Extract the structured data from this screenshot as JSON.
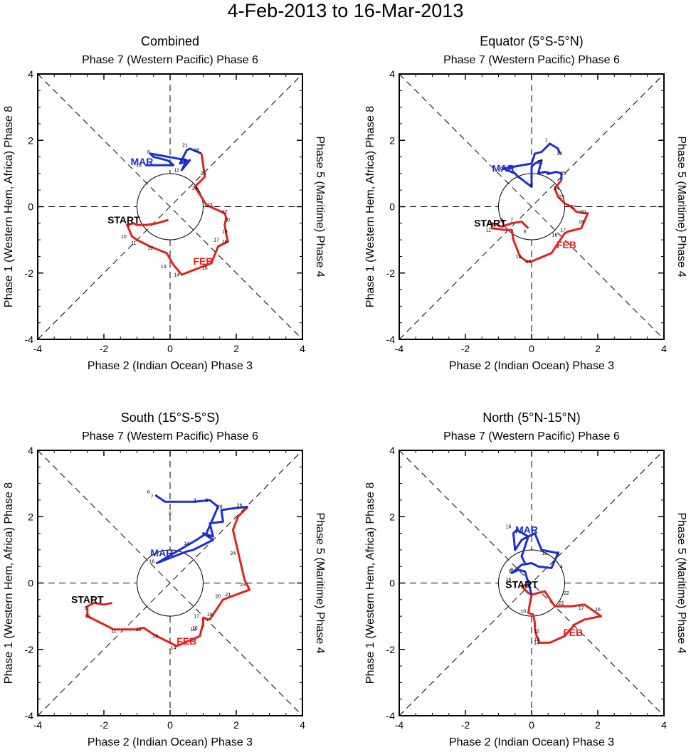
{
  "title": "4-Feb-2013 to 16-Mar-2013",
  "colors": {
    "feb": "#e8201a",
    "mar": "#1a2fd6",
    "axis": "#000000"
  },
  "chart_data": [
    {
      "type": "line",
      "title": "Combined",
      "top_label": "Phase 7 (Western Pacific) Phase 6",
      "bottom_label": "Phase 2 (Indian Ocean) Phase 3",
      "left_label": "Phase 1 (Western Hem, Africa) Phase 8",
      "right_label": "Phase 5 (Maritime) Phase 4",
      "xlim": [
        -4,
        4
      ],
      "ylim": [
        -4,
        4
      ],
      "ticks": [
        -4,
        -2,
        0,
        2,
        4
      ],
      "start_label": "START",
      "feb_label": "FEB",
      "mar_label": "MAR",
      "start_label_pos": [
        -1.4,
        -0.5
      ],
      "feb_label_pos": [
        1.0,
        -1.75
      ],
      "mar_label_pos": [
        -0.85,
        1.25
      ],
      "feb": [
        [
          -0.05,
          -0.4
        ],
        [
          -0.4,
          -0.5
        ],
        [
          -0.7,
          -0.55
        ],
        [
          -1.0,
          -0.55
        ],
        [
          -1.1,
          -0.5
        ],
        [
          -1.3,
          -0.55
        ],
        [
          -1.15,
          -0.9
        ],
        [
          -1.0,
          -1.0
        ],
        [
          -0.6,
          -1.2
        ],
        [
          -0.35,
          -1.3
        ],
        [
          -0.1,
          -1.4
        ],
        [
          0.1,
          -1.75
        ],
        [
          0.35,
          -2.05
        ],
        [
          1.0,
          -1.8
        ],
        [
          1.25,
          -1.7
        ],
        [
          1.45,
          -1.2
        ],
        [
          1.75,
          -1.05
        ],
        [
          1.7,
          -0.85
        ],
        [
          1.65,
          -0.55
        ],
        [
          1.7,
          -0.35
        ],
        [
          1.65,
          -0.2
        ],
        [
          1.1,
          0.05
        ],
        [
          0.75,
          0.6
        ],
        [
          1.05,
          0.9
        ],
        [
          0.95,
          1.6
        ]
      ],
      "mar": [
        [
          0.95,
          1.6
        ],
        [
          0.6,
          1.75
        ],
        [
          0.5,
          1.7
        ],
        [
          0.3,
          1.3
        ],
        [
          0.6,
          1.4
        ],
        [
          0.35,
          1.1
        ],
        [
          0.5,
          1.4
        ],
        [
          -0.6,
          1.6
        ],
        [
          -0.55,
          1.55
        ],
        [
          -0.5,
          1.5
        ],
        [
          -0.1,
          1.4
        ],
        [
          0.0,
          1.35
        ],
        [
          0.1,
          1.25
        ],
        [
          -0.3,
          1.25
        ],
        [
          -0.5,
          1.25
        ],
        [
          -0.75,
          1.25
        ]
      ],
      "feb_day_labels": [
        {
          "t": "9",
          "x": -1.25,
          "y": -0.6
        },
        {
          "t": "10",
          "x": -1.4,
          "y": -0.95
        },
        {
          "t": "11",
          "x": -1.1,
          "y": -1.15
        },
        {
          "t": "12",
          "x": -0.6,
          "y": -1.3
        },
        {
          "t": "13",
          "x": -0.2,
          "y": -1.85
        },
        {
          "t": "14",
          "x": 0.2,
          "y": -2.1
        },
        {
          "t": "16",
          "x": 1.05,
          "y": -1.9
        },
        {
          "t": "17",
          "x": 1.4,
          "y": -1.05
        },
        {
          "t": "18",
          "x": 1.65,
          "y": -1.1
        },
        {
          "t": "19",
          "x": 1.65,
          "y": -0.8
        },
        {
          "t": "20",
          "x": 1.72,
          "y": -0.45
        },
        {
          "t": "22",
          "x": 1.65,
          "y": -0.2
        },
        {
          "t": "23",
          "x": 1.2,
          "y": 0.0
        },
        {
          "t": "24",
          "x": 0.75,
          "y": 0.5
        },
        {
          "t": "25",
          "x": 1.0,
          "y": 0.95
        }
      ],
      "mar_day_labels": [
        {
          "t": "6",
          "x": -0.65,
          "y": 1.6
        },
        {
          "t": "16",
          "x": -0.95,
          "y": 1.2
        },
        {
          "t": "21",
          "x": 0.45,
          "y": 1.8
        },
        {
          "t": "26",
          "x": 0.8,
          "y": 1.65
        },
        {
          "t": "12",
          "x": 0.2,
          "y": 1.05
        },
        {
          "t": "10",
          "x": 0.4,
          "y": 1.35
        }
      ]
    },
    {
      "type": "line",
      "title": "Equator (5°S-5°N)",
      "top_label": "Phase 7 (Western Pacific) Phase 6",
      "bottom_label": "Phase 2 (Indian Ocean) Phase 3",
      "left_label": "Phase 1 (Western Hem, Africa) Phase 8",
      "right_label": "Phase 5 (Maritime) Phase 4",
      "xlim": [
        -4,
        4
      ],
      "ylim": [
        -4,
        4
      ],
      "ticks": [
        -4,
        -2,
        0,
        2,
        4
      ],
      "start_label": "START",
      "feb_label": "FEB",
      "mar_label": "MAR",
      "start_label_pos": [
        -1.25,
        -0.6
      ],
      "feb_label_pos": [
        1.05,
        -1.25
      ],
      "mar_label_pos": [
        -0.85,
        1.05
      ],
      "feb": [
        [
          -0.1,
          -0.65
        ],
        [
          -0.3,
          -0.45
        ],
        [
          -0.6,
          -0.5
        ],
        [
          -0.9,
          -0.6
        ],
        [
          -1.2,
          -0.5
        ],
        [
          -1.2,
          -0.65
        ],
        [
          -0.8,
          -0.7
        ],
        [
          -0.6,
          -0.7
        ],
        [
          -0.55,
          -1.0
        ],
        [
          -0.35,
          -1.5
        ],
        [
          -0.15,
          -1.65
        ],
        [
          0.0,
          -1.65
        ],
        [
          0.6,
          -1.4
        ],
        [
          0.8,
          -1.1
        ],
        [
          1.0,
          -0.8
        ],
        [
          1.1,
          -0.75
        ],
        [
          1.5,
          -0.65
        ],
        [
          1.7,
          -0.2
        ],
        [
          1.6,
          -0.2
        ],
        [
          1.35,
          -0.15
        ],
        [
          1.2,
          0.0
        ],
        [
          1.0,
          0.1
        ],
        [
          0.8,
          0.3
        ],
        [
          0.7,
          0.55
        ],
        [
          0.9,
          0.8
        ]
      ],
      "mar": [
        [
          0.9,
          0.8
        ],
        [
          0.9,
          1.0
        ],
        [
          0.75,
          1.05
        ],
        [
          0.55,
          1.0
        ],
        [
          0.4,
          1.05
        ],
        [
          0.2,
          1.0
        ],
        [
          0.3,
          1.4
        ],
        [
          0.1,
          1.3
        ],
        [
          0.0,
          1.2
        ],
        [
          0.0,
          0.6
        ],
        [
          -0.4,
          0.9
        ],
        [
          -0.5,
          1.0
        ],
        [
          -0.85,
          1.15
        ],
        [
          0.0,
          1.3
        ],
        [
          0.1,
          1.6
        ],
        [
          0.3,
          1.65
        ],
        [
          0.55,
          1.9
        ],
        [
          0.8,
          1.75
        ],
        [
          0.85,
          1.6
        ]
      ],
      "feb_day_labels": [
        {
          "t": "6",
          "x": -0.2,
          "y": -0.8
        },
        {
          "t": "7",
          "x": -0.6,
          "y": -0.45
        },
        {
          "t": "8",
          "x": -0.9,
          "y": -0.45
        },
        {
          "t": "11",
          "x": -1.3,
          "y": -0.75
        },
        {
          "t": "13",
          "x": -0.4,
          "y": -1.55
        },
        {
          "t": "14",
          "x": -0.1,
          "y": -1.7
        },
        {
          "t": "16",
          "x": 0.7,
          "y": -0.9
        },
        {
          "t": "17",
          "x": 0.95,
          "y": -0.75
        },
        {
          "t": "18",
          "x": 1.5,
          "y": -0.5
        },
        {
          "t": "20",
          "x": 1.55,
          "y": -0.2
        },
        {
          "t": "22",
          "x": 1.25,
          "y": -0.05
        },
        {
          "t": "23",
          "x": 0.9,
          "y": 0.25
        },
        {
          "t": "24",
          "x": 0.75,
          "y": 0.5
        },
        {
          "t": "25",
          "x": 0.95,
          "y": 0.95
        }
      ],
      "mar_day_labels": [
        {
          "t": "1",
          "x": 0.45,
          "y": 1.95
        },
        {
          "t": "16",
          "x": -0.95,
          "y": 1.1
        },
        {
          "t": "8",
          "x": 0.0,
          "y": 0.6
        },
        {
          "t": "9",
          "x": 0.5,
          "y": 0.95
        },
        {
          "t": "12",
          "x": 0.25,
          "y": 1.3
        },
        {
          "t": "26",
          "x": 0.85,
          "y": 1.55
        }
      ]
    },
    {
      "type": "line",
      "title": "South (15°S-5°S)",
      "top_label": "Phase 7 (Western Pacific) Phase 6",
      "bottom_label": "Phase 2 (Indian Ocean) Phase 3",
      "left_label": "Phase 1 (Western Hem, Africa) Phase 8",
      "right_label": "Phase 5 (Maritime) Phase 4",
      "xlim": [
        -4,
        4
      ],
      "ylim": [
        -4,
        4
      ],
      "ticks": [
        -4,
        -2,
        0,
        2,
        4
      ],
      "start_label": "START",
      "feb_label": "FEB",
      "mar_label": "MAR",
      "start_label_pos": [
        -2.5,
        -0.6
      ],
      "feb_label_pos": [
        0.5,
        -1.85
      ],
      "mar_label_pos": [
        -0.25,
        0.8
      ],
      "feb": [
        [
          -1.75,
          -0.6
        ],
        [
          -2.0,
          -0.65
        ],
        [
          -2.3,
          -0.6
        ],
        [
          -2.4,
          -0.65
        ],
        [
          -2.5,
          -0.7
        ],
        [
          -2.5,
          -0.9
        ],
        [
          -2.5,
          -1.0
        ],
        [
          -1.8,
          -1.35
        ],
        [
          -1.7,
          -1.4
        ],
        [
          -1.0,
          -1.4
        ],
        [
          -0.8,
          -1.35
        ],
        [
          -0.5,
          -1.55
        ],
        [
          0.2,
          -1.9
        ],
        [
          0.9,
          -1.6
        ],
        [
          1.0,
          -1.2
        ],
        [
          1.0,
          -1.3
        ],
        [
          1.0,
          -1.05
        ],
        [
          1.2,
          -1.1
        ],
        [
          1.6,
          -0.5
        ],
        [
          2.0,
          -0.35
        ],
        [
          2.4,
          -0.2
        ],
        [
          2.25,
          0.1
        ],
        [
          1.9,
          1.6
        ],
        [
          2.05,
          2.0
        ],
        [
          2.35,
          2.3
        ]
      ],
      "mar": [
        [
          2.35,
          2.3
        ],
        [
          1.9,
          2.25
        ],
        [
          1.55,
          2.2
        ],
        [
          1.6,
          1.85
        ],
        [
          1.2,
          1.8
        ],
        [
          1.3,
          1.4
        ],
        [
          1.0,
          1.5
        ],
        [
          1.3,
          1.3
        ],
        [
          0.7,
          1.0
        ],
        [
          0.5,
          0.95
        ],
        [
          -0.4,
          0.6
        ],
        [
          0.8,
          1.3
        ],
        [
          1.1,
          1.5
        ],
        [
          1.45,
          2.3
        ],
        [
          1.2,
          2.5
        ],
        [
          0.75,
          2.45
        ],
        [
          -0.15,
          2.45
        ],
        [
          -0.45,
          2.65
        ],
        [
          -0.45,
          2.65
        ]
      ],
      "feb_day_labels": [
        {
          "t": "9",
          "x": -2.55,
          "y": -0.8
        },
        {
          "t": "10",
          "x": -2.5,
          "y": -1.05
        },
        {
          "t": "11",
          "x": -1.7,
          "y": -1.5
        },
        {
          "t": "12",
          "x": -0.95,
          "y": -1.45
        },
        {
          "t": "13",
          "x": -0.45,
          "y": -1.65
        },
        {
          "t": "14",
          "x": 0.1,
          "y": -2.0
        },
        {
          "t": "16",
          "x": 0.75,
          "y": -1.4
        },
        {
          "t": "17",
          "x": 0.8,
          "y": -1.05
        },
        {
          "t": "18",
          "x": 0.7,
          "y": -1.45
        },
        {
          "t": "19",
          "x": 1.2,
          "y": -1.0
        },
        {
          "t": "20",
          "x": 1.45,
          "y": -0.45
        },
        {
          "t": "21",
          "x": 1.75,
          "y": -0.4
        },
        {
          "t": "23",
          "x": 2.2,
          "y": -0.1
        },
        {
          "t": "24",
          "x": 1.9,
          "y": 0.85
        },
        {
          "t": "26",
          "x": 2.1,
          "y": 2.3
        }
      ],
      "mar_day_labels": [
        {
          "t": "6",
          "x": -0.65,
          "y": 2.7
        },
        {
          "t": "7",
          "x": -0.55,
          "y": 2.55
        },
        {
          "t": "4",
          "x": 0.75,
          "y": 2.45
        },
        {
          "t": "3",
          "x": 1.1,
          "y": 2.45
        },
        {
          "t": "28",
          "x": 1.5,
          "y": 2.25
        },
        {
          "t": "14",
          "x": 0.5,
          "y": 1.15
        },
        {
          "t": "16",
          "x": -0.55,
          "y": 0.6
        },
        {
          "t": "8",
          "x": 0.0,
          "y": 2.05
        }
      ]
    },
    {
      "type": "line",
      "title": "North (5°N-15°N)",
      "top_label": "Phase 7 (Western Pacific) Phase 6",
      "bottom_label": "Phase 2 (Indian Ocean) Phase 3",
      "left_label": "Phase 1 (Western Hem, Africa) Phase 8",
      "right_label": "Phase 5 (Maritime) Phase 4",
      "xlim": [
        -4,
        4
      ],
      "ylim": [
        -4,
        4
      ],
      "ticks": [
        -4,
        -2,
        0,
        2,
        4
      ],
      "start_label": "START",
      "feb_label": "FEB",
      "mar_label": "MAR",
      "start_label_pos": [
        -0.3,
        -0.15
      ],
      "feb_label_pos": [
        1.25,
        -1.6
      ],
      "mar_label_pos": [
        -0.15,
        1.5
      ],
      "feb": [
        [
          -0.15,
          -0.05
        ],
        [
          -0.3,
          -0.1
        ],
        [
          -0.1,
          -0.3
        ],
        [
          0.0,
          -0.35
        ],
        [
          -0.05,
          -0.6
        ],
        [
          -0.1,
          -0.9
        ],
        [
          0.05,
          -0.95
        ],
        [
          0.1,
          -1.2
        ],
        [
          0.1,
          -1.35
        ],
        [
          0.15,
          -1.6
        ],
        [
          0.25,
          -1.8
        ],
        [
          0.55,
          -1.8
        ],
        [
          1.0,
          -1.6
        ],
        [
          1.3,
          -1.25
        ],
        [
          1.6,
          -1.1
        ],
        [
          2.1,
          -1.0
        ],
        [
          1.6,
          -0.65
        ],
        [
          1.2,
          -0.7
        ],
        [
          1.0,
          -0.7
        ],
        [
          0.7,
          -0.7
        ],
        [
          0.4,
          -0.25
        ],
        [
          0.0,
          -0.35
        ]
      ],
      "mar": [
        [
          0.0,
          -0.35
        ],
        [
          -0.1,
          0.0
        ],
        [
          -0.2,
          0.35
        ],
        [
          -0.4,
          0.4
        ],
        [
          -0.6,
          0.3
        ],
        [
          -0.3,
          0.55
        ],
        [
          0.0,
          0.6
        ],
        [
          0.2,
          0.5
        ],
        [
          0.6,
          0.45
        ],
        [
          0.8,
          0.9
        ],
        [
          0.3,
          1.0
        ],
        [
          0.1,
          1.5
        ],
        [
          -0.3,
          1.3
        ],
        [
          -0.5,
          1.0
        ],
        [
          -0.55,
          1.5
        ],
        [
          -0.45,
          1.6
        ],
        [
          -0.1,
          1.4
        ],
        [
          -0.3,
          0.8
        ],
        [
          -0.2,
          0.6
        ]
      ],
      "feb_day_labels": [
        {
          "t": "10",
          "x": -0.25,
          "y": -0.9
        },
        {
          "t": "12",
          "x": 0.15,
          "y": -1.5
        },
        {
          "t": "13",
          "x": 0.15,
          "y": -1.75
        },
        {
          "t": "14",
          "x": 0.15,
          "y": -1.85
        },
        {
          "t": "16",
          "x": 2.0,
          "y": -0.85
        },
        {
          "t": "17",
          "x": 1.5,
          "y": -0.8
        },
        {
          "t": "21",
          "x": 0.9,
          "y": -0.65
        },
        {
          "t": "22",
          "x": 1.05,
          "y": -0.35
        }
      ],
      "mar_day_labels": [
        {
          "t": "16",
          "x": -0.7,
          "y": 1.65
        },
        {
          "t": "1",
          "x": -0.5,
          "y": 1.0
        },
        {
          "t": "3",
          "x": 0.8,
          "y": 0.85
        },
        {
          "t": "4",
          "x": 0.9,
          "y": 0.45
        },
        {
          "t": "9",
          "x": -0.6,
          "y": 0.35
        },
        {
          "t": "8",
          "x": -0.65,
          "y": 0.3
        },
        {
          "t": "10",
          "x": 0.4,
          "y": 0.85
        },
        {
          "t": "26",
          "x": -0.7,
          "y": 0.05
        }
      ]
    }
  ]
}
